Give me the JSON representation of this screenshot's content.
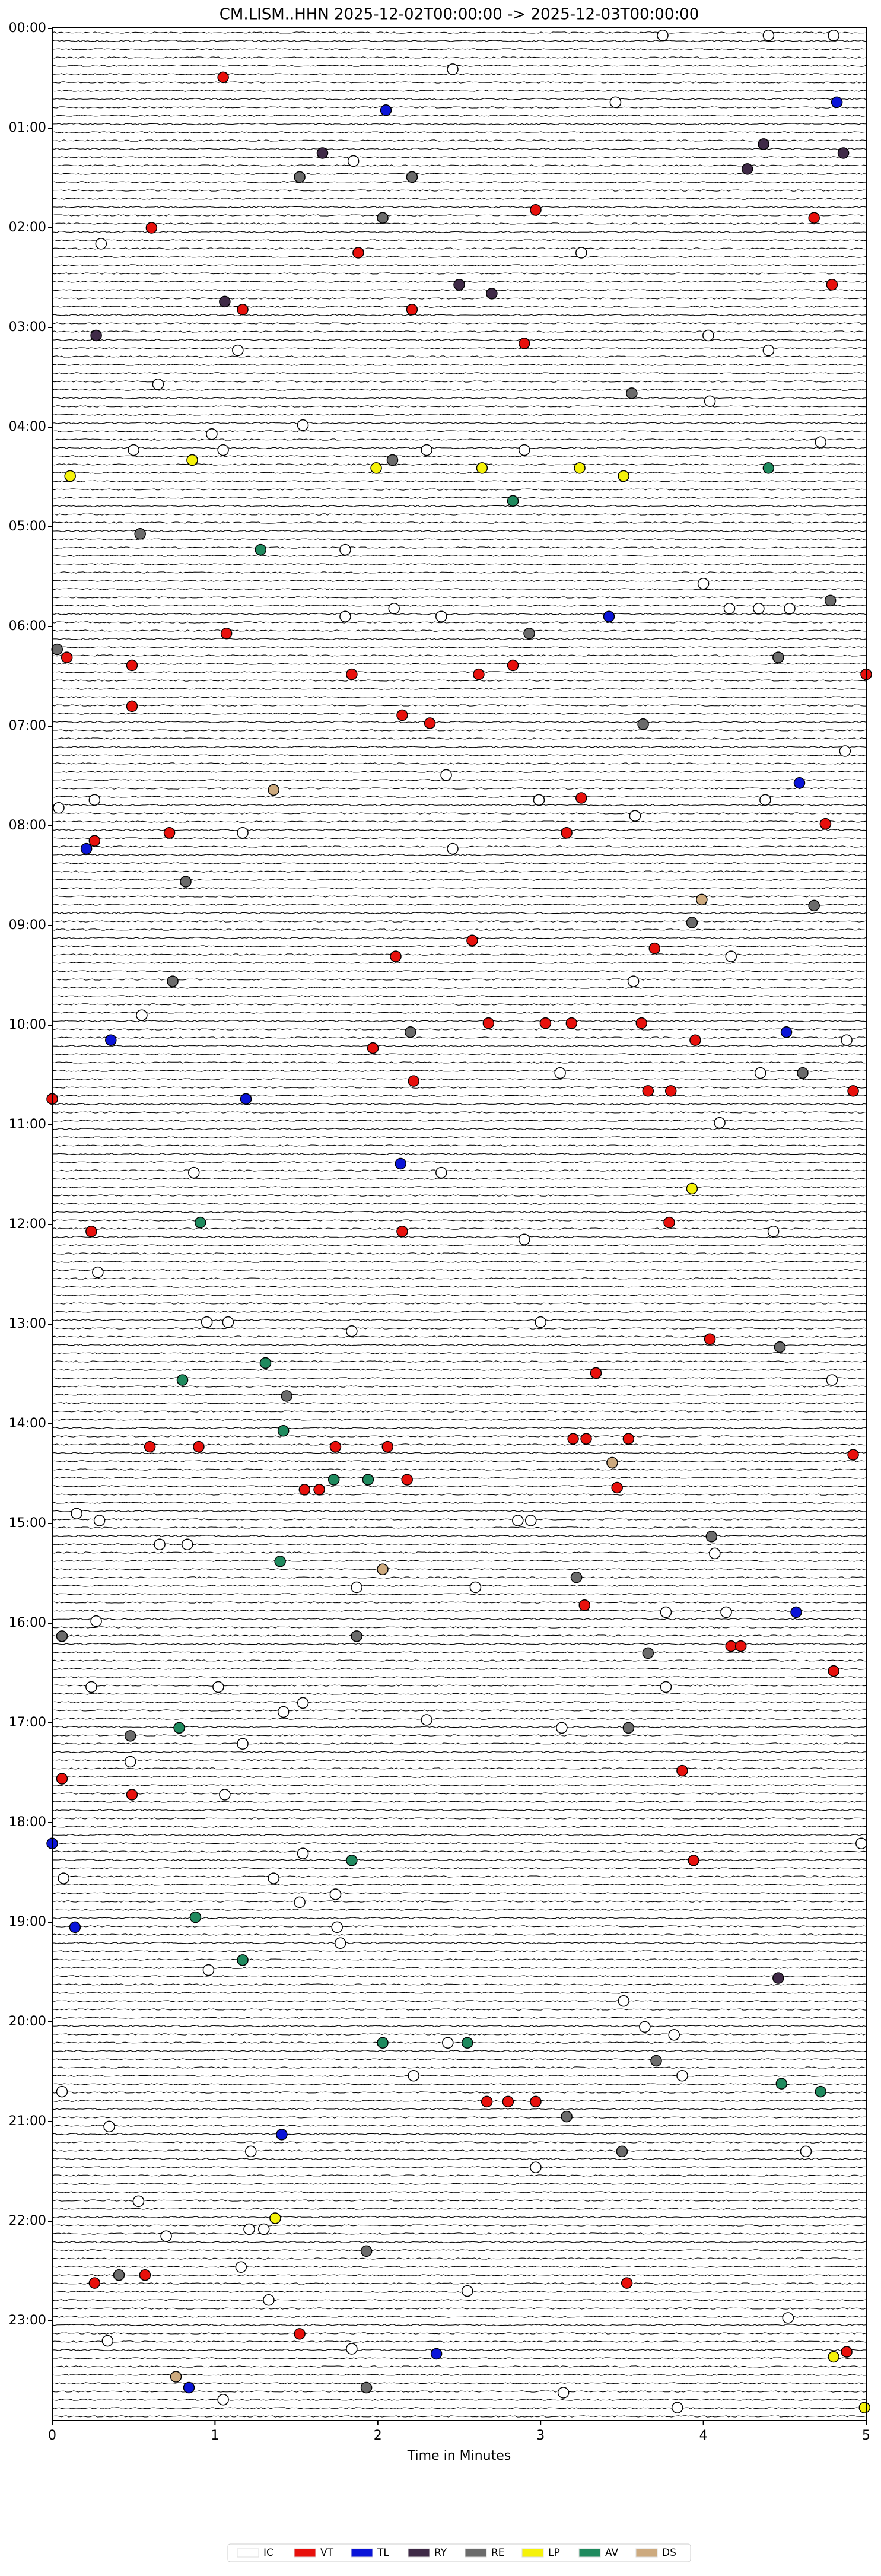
{
  "chart_data": {
    "type": "helicorder",
    "title": "CM.LISM..HHN  2025-12-02T00:00:00 -> 2025-12-03T00:00:00",
    "xlabel": "Time in Minutes",
    "xlim": [
      0,
      5
    ],
    "xticks": [
      0,
      1,
      2,
      3,
      4,
      5
    ],
    "ylim": [
      0,
      24
    ],
    "yticks": [
      {
        "value": 0,
        "label": "00:00"
      },
      {
        "value": 1,
        "label": "01:00"
      },
      {
        "value": 2,
        "label": "02:00"
      },
      {
        "value": 3,
        "label": "03:00"
      },
      {
        "value": 4,
        "label": "04:00"
      },
      {
        "value": 5,
        "label": "05:00"
      },
      {
        "value": 6,
        "label": "06:00"
      },
      {
        "value": 7,
        "label": "07:00"
      },
      {
        "value": 8,
        "label": "08:00"
      },
      {
        "value": 9,
        "label": "09:00"
      },
      {
        "value": 10,
        "label": "10:00"
      },
      {
        "value": 11,
        "label": "11:00"
      },
      {
        "value": 12,
        "label": "12:00"
      },
      {
        "value": 13,
        "label": "13:00"
      },
      {
        "value": 14,
        "label": "14:00"
      },
      {
        "value": 15,
        "label": "15:00"
      },
      {
        "value": 16,
        "label": "16:00"
      },
      {
        "value": 17,
        "label": "17:00"
      },
      {
        "value": 18,
        "label": "18:00"
      },
      {
        "value": 19,
        "label": "19:00"
      },
      {
        "value": 20,
        "label": "20:00"
      },
      {
        "value": 21,
        "label": "21:00"
      },
      {
        "value": 22,
        "label": "22:00"
      },
      {
        "value": 23,
        "label": "23:00"
      }
    ],
    "series": [
      {
        "name": "IC",
        "color": "#ffffff",
        "x": [
          3.75,
          4.4,
          4.8,
          2.46,
          3.46,
          1.85,
          0.3,
          3.25,
          4.03,
          1.14,
          4.4,
          0.65,
          4.04,
          0.98,
          1.54,
          0.5,
          1.05,
          2.3,
          2.9,
          4.72,
          1.8,
          4.0,
          4.16,
          4.34,
          4.53,
          1.8,
          2.1,
          2.39,
          4.87,
          2.42,
          0.26,
          2.99,
          4.38,
          3.58,
          0.04,
          1.17,
          2.46,
          4.17,
          3.57,
          0.55,
          4.88,
          3.12,
          4.35,
          4.1,
          0.87,
          2.39,
          4.43,
          2.9,
          0.28,
          0.95,
          1.08,
          3.0,
          1.84,
          4.79,
          0.15,
          0.29,
          2.86,
          2.94,
          0.66,
          0.83,
          4.07,
          1.87,
          2.6,
          3.77,
          4.14,
          0.27,
          0.24,
          1.02,
          3.77,
          1.42,
          1.54,
          2.3,
          3.13,
          0.48,
          1.17,
          1.06,
          4.97,
          1.54,
          1.36,
          0.07,
          1.74,
          1.52,
          1.75,
          1.77,
          0.96,
          3.51,
          3.64,
          3.82,
          2.43,
          2.22,
          3.87,
          0.06,
          0.35,
          1.22,
          4.63,
          2.97,
          0.53,
          0.7,
          1.21,
          1.3,
          1.16,
          2.55,
          1.33,
          0.34,
          1.84,
          4.52,
          1.05,
          3.14,
          3.84
        ],
        "y": [
          0.07,
          0.07,
          0.07,
          0.41,
          0.74,
          1.33,
          2.16,
          2.25,
          3.08,
          3.23,
          3.23,
          3.57,
          3.74,
          4.07,
          3.98,
          4.23,
          4.23,
          4.23,
          4.23,
          4.15,
          5.23,
          5.57,
          5.82,
          5.82,
          5.82,
          5.9,
          5.82,
          5.9,
          7.25,
          7.49,
          7.74,
          7.74,
          7.74,
          7.9,
          7.82,
          8.07,
          8.23,
          9.31,
          9.56,
          9.9,
          10.15,
          10.48,
          10.48,
          10.98,
          11.48,
          11.48,
          12.07,
          12.15,
          12.48,
          12.98,
          12.98,
          12.98,
          13.07,
          13.56,
          14.9,
          14.97,
          14.97,
          14.97,
          15.21,
          15.21,
          15.3,
          15.64,
          15.64,
          15.89,
          15.89,
          15.98,
          16.64,
          16.64,
          16.64,
          16.89,
          16.8,
          16.97,
          17.05,
          17.39,
          17.21,
          17.72,
          18.21,
          18.31,
          18.56,
          18.56,
          18.72,
          18.8,
          19.05,
          19.21,
          19.48,
          19.79,
          20.05,
          20.13,
          20.21,
          20.54,
          20.54,
          20.7,
          21.05,
          21.3,
          21.3,
          21.46,
          21.8,
          22.15,
          22.08,
          22.08,
          22.46,
          22.7,
          22.79,
          23.2,
          23.28,
          22.97,
          23.79,
          23.72,
          23.87
        ]
      },
      {
        "name": "VT",
        "color": "#e8100c",
        "x": [
          1.05,
          0.61,
          1.88,
          1.17,
          2.21,
          2.9,
          2.97,
          4.68,
          4.79,
          1.07,
          0.09,
          0.49,
          1.84,
          2.62,
          2.83,
          5.0,
          0.49,
          2.15,
          2.32,
          3.25,
          0.26,
          0.72,
          3.16,
          4.75,
          2.58,
          2.11,
          3.7,
          2.68,
          3.03,
          3.19,
          3.62,
          3.95,
          1.97,
          3.66,
          3.8,
          4.92,
          0,
          2.22,
          0.24,
          2.15,
          3.79,
          4.04,
          3.34,
          0.6,
          0.9,
          1.74,
          2.06,
          3.2,
          3.28,
          3.54,
          4.92,
          1.55,
          1.64,
          2.18,
          3.47,
          3.27,
          4.17,
          4.23,
          4.8,
          0.06,
          0.49,
          3.87,
          3.94,
          2.67,
          2.8,
          2.97,
          0.26,
          0.57,
          3.53,
          1.52,
          4.88
        ],
        "y": [
          0.49,
          2.0,
          2.25,
          2.82,
          2.82,
          3.16,
          1.82,
          1.9,
          2.57,
          6.07,
          6.31,
          6.39,
          6.48,
          6.48,
          6.39,
          6.48,
          6.8,
          6.89,
          6.97,
          7.72,
          8.15,
          8.07,
          8.07,
          7.98,
          9.15,
          9.31,
          9.23,
          9.98,
          9.98,
          9.98,
          9.98,
          10.15,
          10.23,
          10.66,
          10.66,
          10.66,
          10.74,
          10.56,
          12.07,
          12.07,
          11.98,
          13.15,
          13.49,
          14.23,
          14.23,
          14.23,
          14.23,
          14.15,
          14.15,
          14.15,
          14.31,
          14.66,
          14.66,
          14.56,
          14.64,
          15.82,
          16.23,
          16.23,
          16.48,
          17.56,
          17.72,
          17.48,
          18.38,
          20.8,
          20.8,
          20.8,
          22.62,
          22.54,
          22.62,
          23.13,
          23.31
        ]
      },
      {
        "name": "TL",
        "color": "#0a14d8",
        "x": [
          2.05,
          4.82,
          3.42,
          4.59,
          0.21,
          0.36,
          4.51,
          1.19,
          2.14,
          4.57,
          0,
          0.14,
          1.41,
          2.36,
          0.84
        ],
        "y": [
          0.82,
          0.74,
          5.9,
          7.57,
          8.23,
          10.15,
          10.07,
          10.74,
          11.39,
          15.89,
          18.21,
          19.05,
          21.13,
          23.33,
          23.67
        ]
      },
      {
        "name": "RY",
        "color": "#3f2a47",
        "x": [
          1.66,
          4.37,
          4.27,
          4.86,
          2.5,
          2.7,
          1.06,
          0.27,
          4.46
        ],
        "y": [
          1.25,
          1.16,
          1.41,
          1.25,
          2.57,
          2.66,
          2.74,
          3.08,
          19.56
        ]
      },
      {
        "name": "RE",
        "color": "#6b6b6b",
        "x": [
          1.52,
          2.21,
          2.03,
          3.56,
          2.09,
          0.54,
          4.78,
          2.93,
          0.03,
          4.46,
          3.63,
          0.82,
          4.68,
          3.93,
          0.74,
          2.2,
          4.61,
          4.47,
          1.44,
          4.05,
          3.22,
          1.87,
          0.06,
          3.66,
          0.48,
          3.54,
          3.16,
          3.5,
          3.71,
          1.93,
          0.41,
          1.93
        ],
        "y": [
          1.49,
          1.49,
          1.9,
          3.66,
          4.33,
          5.07,
          5.74,
          6.07,
          6.23,
          6.31,
          6.98,
          8.56,
          8.8,
          8.97,
          9.56,
          10.07,
          10.48,
          13.23,
          13.72,
          15.13,
          15.54,
          16.13,
          16.13,
          16.3,
          17.13,
          17.05,
          20.95,
          21.3,
          20.39,
          22.3,
          22.54,
          23.67
        ]
      },
      {
        "name": "LP",
        "color": "#f5f20a",
        "x": [
          0.86,
          1.99,
          2.64,
          3.24,
          0.11,
          3.51,
          3.93,
          1.37,
          4.8,
          4.99
        ],
        "y": [
          4.33,
          4.41,
          4.41,
          4.41,
          4.49,
          4.49,
          11.64,
          21.97,
          23.36,
          23.87
        ]
      },
      {
        "name": "AV",
        "color": "#1f8a5e",
        "x": [
          4.4,
          2.83,
          1.28,
          0.91,
          1.31,
          0.8,
          1.42,
          1.73,
          1.94,
          1.4,
          0.78,
          1.84,
          0.88,
          1.17,
          2.03,
          2.55,
          4.48,
          4.72
        ],
        "y": [
          4.41,
          4.74,
          5.23,
          11.98,
          13.39,
          13.56,
          14.07,
          14.56,
          14.56,
          15.38,
          17.05,
          18.38,
          18.95,
          19.38,
          20.21,
          20.21,
          20.62,
          20.7
        ]
      },
      {
        "name": "DS",
        "color": "#cdaa7f",
        "x": [
          1.36,
          3.99,
          2.03,
          3.44,
          0.76
        ],
        "y": [
          7.64,
          8.74,
          15.46,
          14.39,
          23.56
        ]
      }
    ]
  }
}
